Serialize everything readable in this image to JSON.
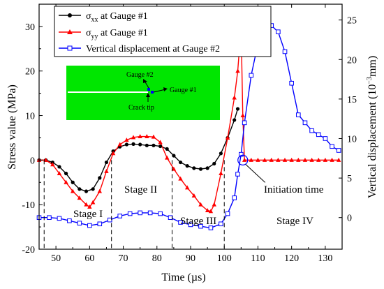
{
  "chart_data": {
    "type": "line",
    "xlabel": "Time (µs)",
    "ylabel_left": "Stress value (MPa)",
    "ylabel_right_main": "Vertical displacement (10",
    "ylabel_right_sup": "−3",
    "ylabel_right_tail": "mm)",
    "xlim": [
      45,
      135
    ],
    "ylim_left": [
      -20,
      35
    ],
    "ylim_right": [
      -4,
      27
    ],
    "x_ticks": [
      50,
      60,
      70,
      80,
      90,
      100,
      110,
      120,
      130
    ],
    "y_left_ticks": [
      -20,
      -10,
      0,
      10,
      20,
      30
    ],
    "y_right_ticks": [
      0,
      5,
      10,
      15,
      20,
      25
    ],
    "series": [
      {
        "name": "σxx at Gauge #1",
        "name_base": "σ",
        "name_sub": "xx",
        "name_tail": " at Gauge #1",
        "axis": "left",
        "color": "#000000",
        "marker": "circle",
        "x": [
          45,
          47,
          49,
          51,
          53,
          55,
          57,
          59,
          61,
          63,
          65,
          67,
          69,
          71,
          73,
          75,
          77,
          79,
          81,
          83,
          85,
          87,
          89,
          91,
          93,
          95,
          97,
          99,
          101,
          103,
          104
        ],
        "y": [
          0,
          0,
          -0.5,
          -1.5,
          -3,
          -5,
          -6.5,
          -7,
          -6.5,
          -4,
          -0.5,
          2,
          3,
          3.5,
          3.6,
          3.5,
          3.3,
          3.3,
          3.1,
          2.5,
          1,
          -0.5,
          -1.3,
          -1.8,
          -2,
          -1.8,
          -0.8,
          1.5,
          5,
          9,
          11.5
        ]
      },
      {
        "name": "σyy at Gauge #1",
        "name_base": "σ",
        "name_sub": "yy",
        "name_tail": " at Gauge #1",
        "axis": "left",
        "color": "#ff0000",
        "marker": "triangle",
        "x": [
          45,
          47,
          49,
          51,
          53,
          55,
          57,
          59,
          60,
          61,
          63,
          65,
          67,
          69,
          71,
          73,
          75,
          77,
          79,
          81,
          83,
          85,
          87,
          89,
          91,
          93,
          95,
          96,
          97,
          99,
          101,
          103,
          104,
          105,
          105.5,
          106,
          108,
          110,
          112,
          114,
          116,
          118,
          120,
          122,
          124,
          126,
          128,
          130,
          132,
          134
        ],
        "y": [
          0,
          0,
          -1,
          -3,
          -5,
          -7,
          -8.5,
          -10,
          -10.5,
          -9.5,
          -7,
          -2.5,
          1.5,
          3.5,
          4.5,
          5.1,
          5.3,
          5.3,
          5.2,
          4,
          0.5,
          -2,
          -4.2,
          -6.2,
          -8,
          -10,
          -11.3,
          -11.5,
          -10,
          -3,
          5,
          14,
          20,
          30,
          10,
          0,
          0,
          0,
          0,
          0,
          0,
          0,
          0,
          0,
          0,
          0,
          0,
          0,
          0,
          0
        ]
      },
      {
        "name": "Vertical displacement at Gauge #2",
        "axis": "right",
        "color": "#0000ff",
        "marker": "square",
        "x": [
          45,
          48,
          51,
          54,
          57,
          60,
          63,
          66,
          69,
          72,
          75,
          78,
          81,
          84,
          87,
          90,
          93,
          96,
          99,
          101,
          103,
          104,
          105,
          106,
          108,
          110,
          112,
          114,
          116,
          118,
          120,
          122,
          124,
          126,
          128,
          130,
          132,
          134
        ],
        "y": [
          0,
          0,
          -0.1,
          -0.4,
          -0.7,
          -1,
          -0.8,
          -0.3,
          0.2,
          0.5,
          0.6,
          0.6,
          0.5,
          0,
          -0.6,
          -0.9,
          -1.1,
          -1.3,
          -0.8,
          0.5,
          2.5,
          5.5,
          8,
          12,
          18,
          22,
          24,
          24.3,
          23.5,
          21,
          17,
          13,
          12,
          11,
          10.5,
          10,
          9,
          8.5
        ]
      }
    ],
    "annotations": {
      "stages": [
        "Stage I",
        "Stage II",
        "Stage III",
        "Stage IV"
      ],
      "stage_boundaries": [
        46.5,
        66.5,
        84.5,
        100
      ],
      "initiation_label": "Initiation time",
      "initiation_point": [
        105.5,
        0
      ]
    },
    "inset": {
      "gauge2": "Gauge #2",
      "gauge1": "Gauge #1",
      "crack_tip": "Crack tip",
      "color": "#00e600"
    }
  }
}
